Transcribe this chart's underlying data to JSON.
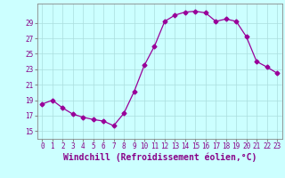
{
  "x": [
    0,
    1,
    2,
    3,
    4,
    5,
    6,
    7,
    8,
    9,
    10,
    11,
    12,
    13,
    14,
    15,
    16,
    17,
    18,
    19,
    20,
    21,
    22,
    23
  ],
  "y": [
    18.5,
    19.0,
    18.0,
    17.2,
    16.8,
    16.5,
    16.3,
    15.7,
    17.3,
    20.1,
    23.5,
    26.0,
    29.2,
    30.0,
    30.4,
    30.5,
    30.3,
    29.2,
    29.5,
    29.2,
    27.2,
    24.0,
    23.3,
    22.5
  ],
  "line_color": "#990099",
  "marker": "D",
  "markersize": 2.5,
  "bg_color": "#ccffff",
  "grid_color": "#aadddd",
  "xlabel": "Windchill (Refroidissement éolien,°C)",
  "xlabel_fontsize": 7,
  "ylabel_ticks": [
    15,
    17,
    19,
    21,
    23,
    25,
    27,
    29
  ],
  "xlim": [
    -0.5,
    23.5
  ],
  "ylim": [
    14.0,
    31.5
  ],
  "xticks": [
    0,
    1,
    2,
    3,
    4,
    5,
    6,
    7,
    8,
    9,
    10,
    11,
    12,
    13,
    14,
    15,
    16,
    17,
    18,
    19,
    20,
    21,
    22,
    23
  ],
  "tick_fontsize": 5.5,
  "tick_color": "#880088",
  "spine_color": "#888888",
  "linewidth": 0.9
}
